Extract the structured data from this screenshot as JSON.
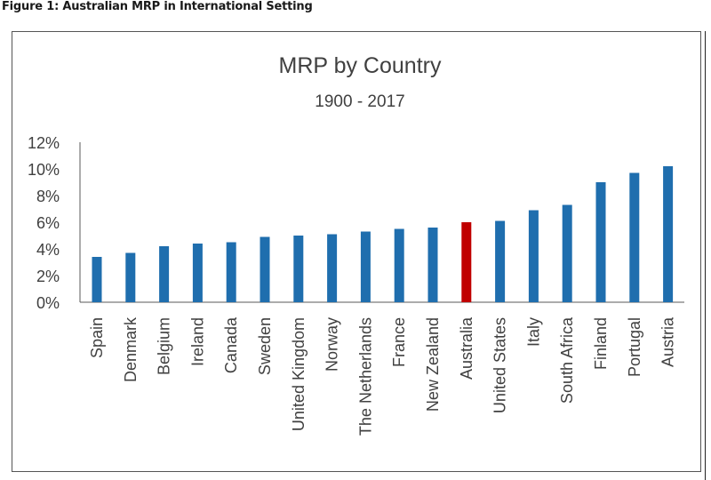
{
  "figure_caption": "Figure 1: Australian MRP in International Setting",
  "chart_data": {
    "type": "bar",
    "title": "MRP by Country",
    "subtitle": "1900 - 2017",
    "xlabel": "",
    "ylabel": "",
    "ylim": [
      0,
      12
    ],
    "yticks": [
      "12%",
      "10%",
      "8%",
      "6%",
      "4%",
      "2%",
      "0%"
    ],
    "ytick_values": [
      12,
      10,
      8,
      6,
      4,
      2,
      0
    ],
    "categories": [
      "Spain",
      "Denmark",
      "Belgium",
      "Ireland",
      "Canada",
      "Sweden",
      "United Kingdom",
      "Norway",
      "The Netherlands",
      "France",
      "New Zealand",
      "Australia",
      "United States",
      "Italy",
      "South Africa",
      "Finland",
      "Portugal",
      "Austria"
    ],
    "values": [
      3.4,
      3.7,
      4.2,
      4.4,
      4.5,
      4.9,
      5.0,
      5.1,
      5.3,
      5.5,
      5.6,
      6.0,
      6.1,
      6.9,
      7.3,
      9.0,
      9.7,
      10.2
    ],
    "highlight": "Australia",
    "colors": {
      "bar": "#1f6eae",
      "highlight": "#c00000",
      "axis": "#595959",
      "text": "#404040"
    },
    "grid": false
  }
}
